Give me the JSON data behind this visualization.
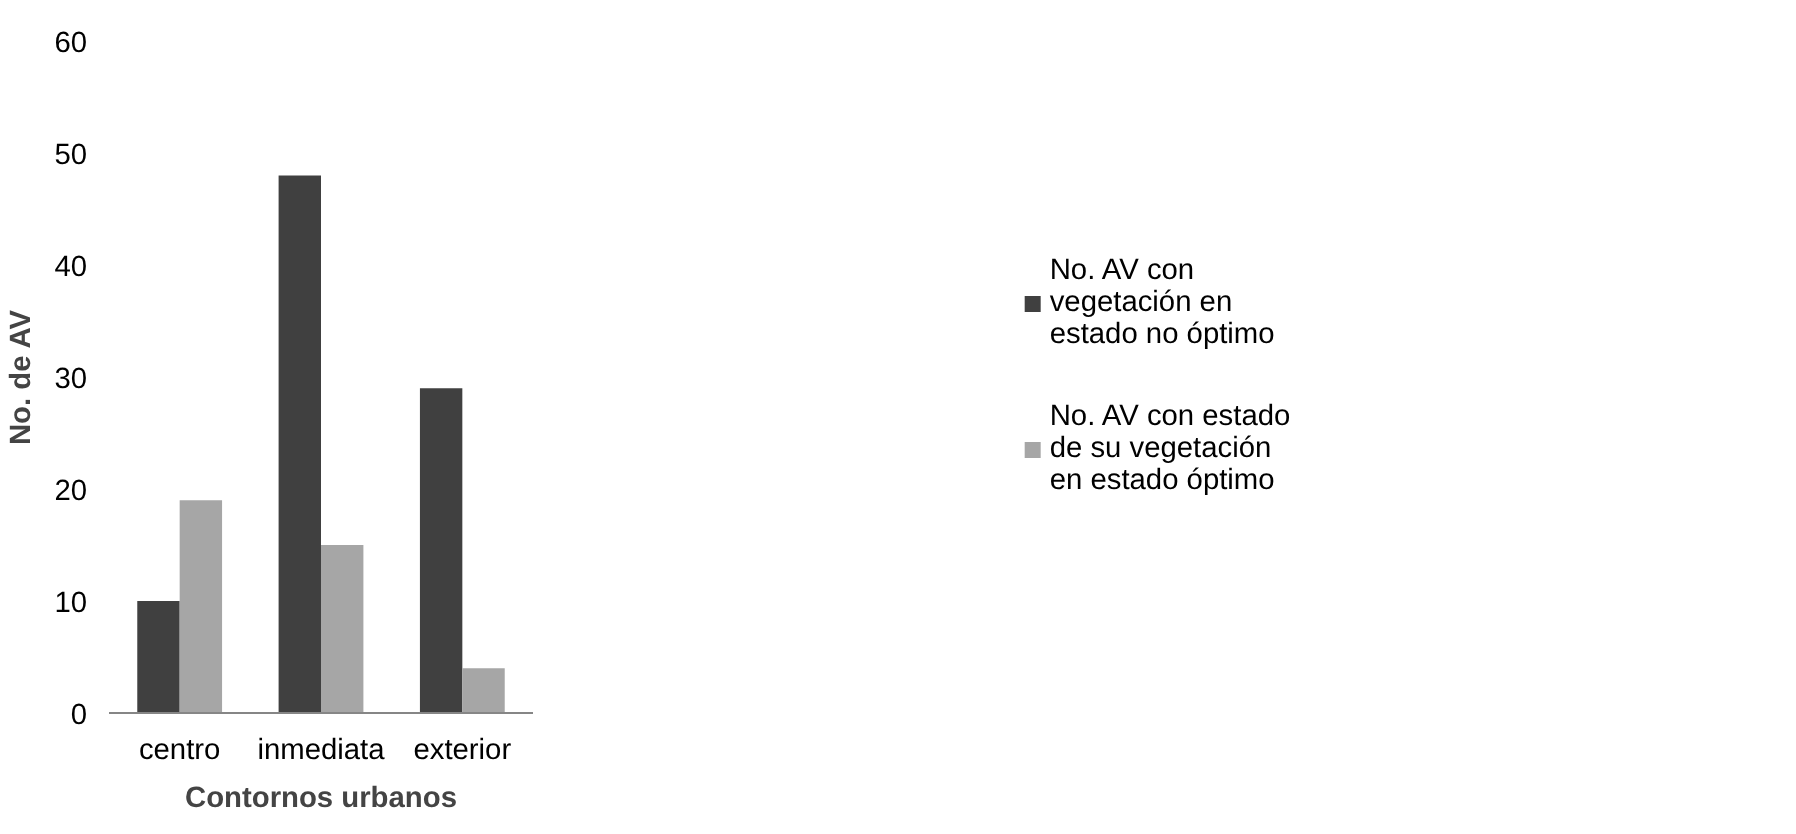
{
  "chart_data": {
    "type": "bar",
    "xlabel": "Contornos urbanos",
    "ylabel": "No. de AV",
    "categories": [
      "centro",
      "inmediata",
      "exterior"
    ],
    "series": [
      {
        "name": "No. AV con vegetación en estado no óptimo",
        "color": "#404040",
        "values": [
          10,
          48,
          29
        ]
      },
      {
        "name": "No. AV con estado de su vegetación en estado óptimo",
        "color": "#a6a6a6",
        "values": [
          19,
          15,
          4
        ]
      }
    ],
    "ylim": [
      0,
      60
    ],
    "yticks": [
      0,
      10,
      20,
      30,
      40,
      50,
      60
    ],
    "grid": false,
    "legend": "right"
  }
}
